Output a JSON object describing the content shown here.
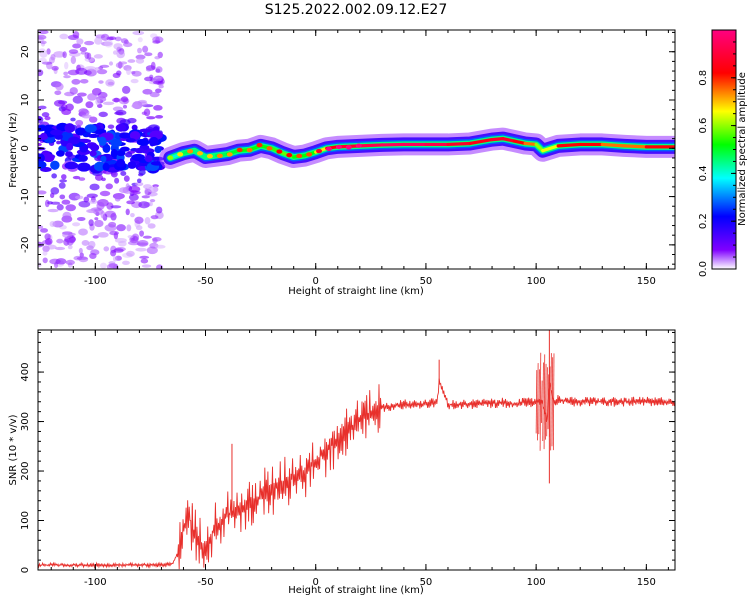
{
  "figure": {
    "title": "S125.2022.002.09.12.E27"
  },
  "chart_data": [
    {
      "type": "heatmap",
      "xlabel": "Height of straight line (km)",
      "ylabel": "Frequency (Hz)",
      "xlim": [
        -126,
        163
      ],
      "ylim": [
        -25,
        24.5
      ],
      "xticks": [
        -100,
        -50,
        0,
        50,
        100,
        150
      ],
      "yticks": [
        -20,
        -10,
        0,
        10,
        20
      ],
      "colorbar": {
        "label": "Normalized spectral amplitude",
        "range": [
          0,
          1
        ],
        "ticks": [
          0.0,
          0.2,
          0.4,
          0.6,
          0.8
        ],
        "colormap": [
          "#ffffff",
          "#8000ff",
          "#0000ff",
          "#00ffff",
          "#00ff00",
          "#ffff00",
          "#ff0000",
          "#ff0080"
        ]
      },
      "ridge": {
        "x": [
          -66,
          -60,
          -55,
          -50,
          -45,
          -40,
          -35,
          -30,
          -25,
          -20,
          -15,
          -10,
          -5,
          0,
          5,
          10,
          20,
          30,
          40,
          50,
          60,
          70,
          80,
          85,
          90,
          95,
          100,
          103,
          110,
          120,
          130,
          140,
          150,
          163
        ],
        "y": [
          -2.0,
          -1.0,
          -0.5,
          -1.8,
          -1.5,
          -1.2,
          -0.5,
          -0.3,
          0.5,
          0.0,
          -1.0,
          -1.8,
          -1.5,
          -0.8,
          0.0,
          0.3,
          0.5,
          0.7,
          0.8,
          0.8,
          0.8,
          1.0,
          1.8,
          2.0,
          1.5,
          1.0,
          0.8,
          -0.5,
          0.5,
          0.8,
          0.8,
          0.5,
          0.3,
          0.3
        ],
        "amplitude": [
          0.35,
          0.45,
          0.5,
          0.4,
          0.5,
          0.45,
          0.55,
          0.5,
          0.55,
          0.5,
          0.6,
          0.55,
          0.5,
          0.55,
          0.8,
          0.85,
          0.9,
          0.95,
          0.95,
          0.95,
          0.9,
          0.85,
          0.85,
          0.9,
          0.85,
          0.8,
          0.7,
          0.5,
          0.8,
          0.85,
          0.8,
          0.7,
          0.8,
          0.85
        ]
      },
      "noise_region": {
        "x_range": [
          -126,
          -70
        ],
        "amplitude_max": 0.3
      }
    },
    {
      "type": "line",
      "xlabel": "Height of straight line (km)",
      "ylabel": "SNR (10 * v/v)",
      "xlim": [
        -126,
        163
      ],
      "ylim": [
        0,
        485
      ],
      "xticks": [
        -100,
        -50,
        0,
        50,
        100,
        150
      ],
      "yticks": [
        0,
        100,
        200,
        300,
        400
      ],
      "line_color": "#e8302c",
      "series": [
        {
          "x": [
            -126,
            -100,
            -80,
            -70,
            -65,
            -62,
            -58,
            -55,
            -52,
            -50,
            -45,
            -40,
            -35,
            -30,
            -25,
            -20,
            -15,
            -10,
            -5,
            0,
            5,
            10,
            15,
            20,
            25,
            30,
            35,
            40,
            45,
            50,
            55,
            56,
            60,
            65,
            70,
            75,
            80,
            85,
            90,
            95,
            100,
            103,
            105,
            106,
            108,
            110,
            115,
            120,
            125,
            130,
            135,
            140,
            145,
            150,
            155,
            163
          ],
          "y": [
            10,
            10,
            10,
            10,
            12,
            40,
            120,
            70,
            50,
            55,
            90,
            110,
            120,
            130,
            150,
            160,
            175,
            190,
            200,
            220,
            240,
            265,
            285,
            305,
            318,
            328,
            332,
            335,
            335,
            336,
            338,
            380,
            334,
            335,
            335,
            336,
            337,
            338,
            336,
            338,
            340,
            340,
            300,
            380,
            340,
            345,
            340,
            340,
            340,
            340,
            340,
            340,
            340,
            340,
            340,
            340
          ]
        }
      ],
      "spikes": [
        {
          "x": -56,
          "y": 135
        },
        {
          "x": -38,
          "y": 255
        },
        {
          "x": 56,
          "y": 425
        },
        {
          "x": 106,
          "y": 485
        },
        {
          "x": 106,
          "y": 175
        }
      ]
    }
  ]
}
